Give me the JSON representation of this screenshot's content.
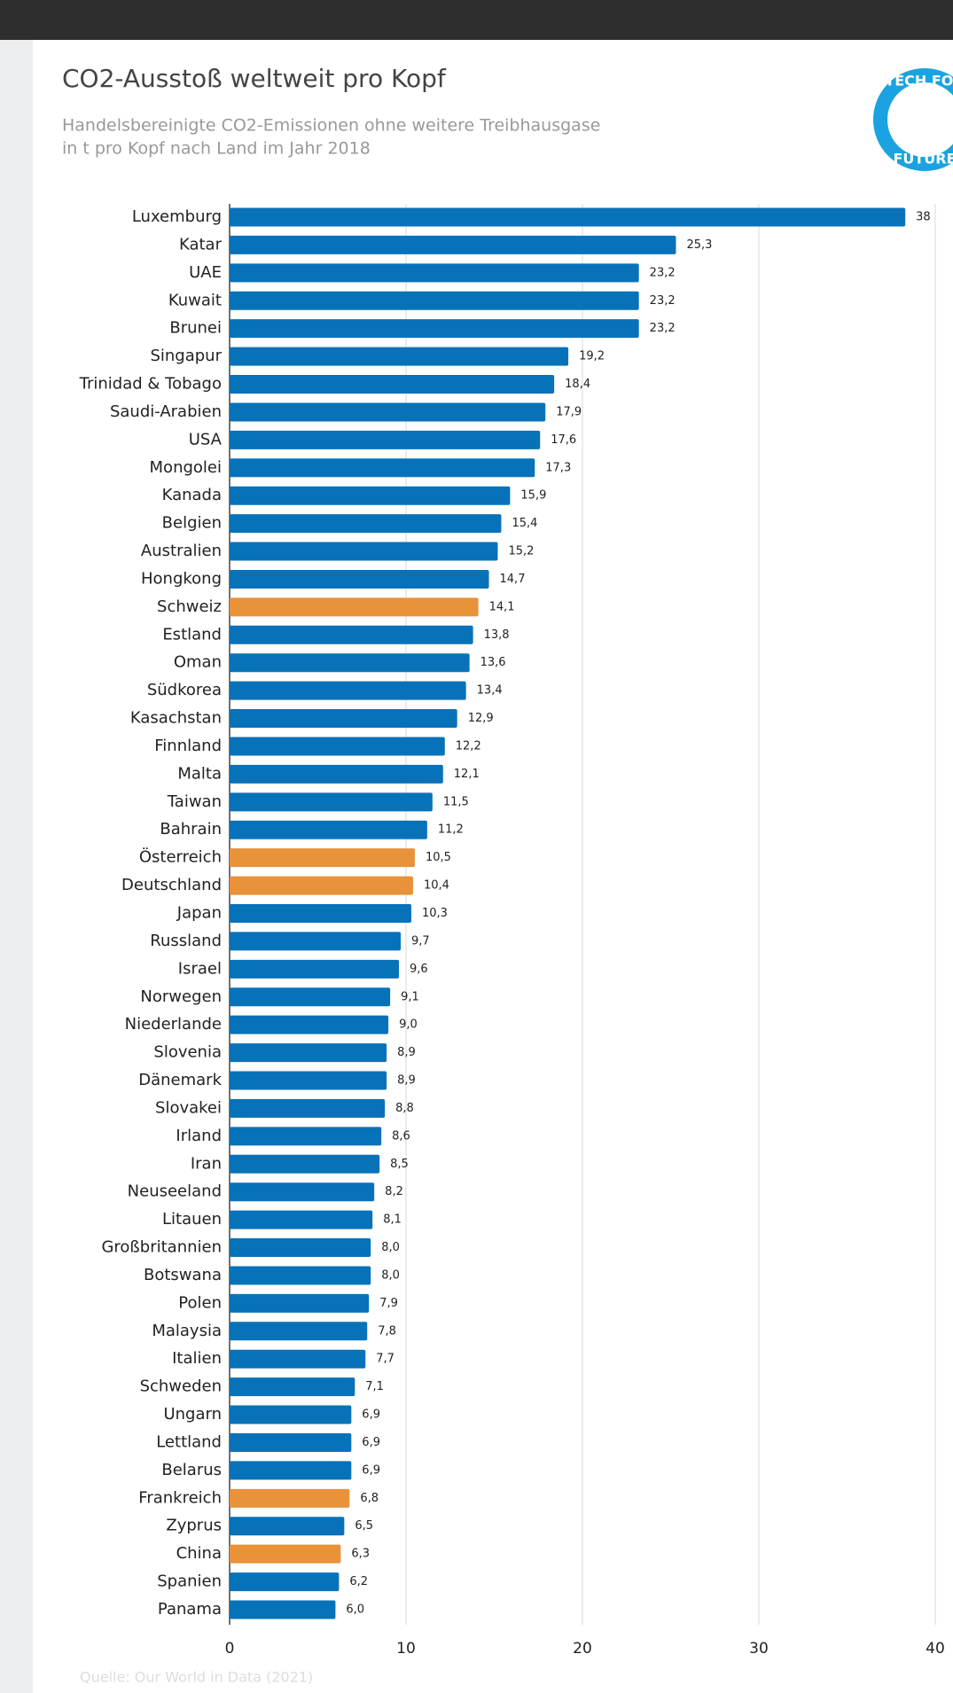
{
  "chart_data": {
    "type": "bar",
    "orientation": "horizontal",
    "title": "CO2-Ausstoß weltweit pro Kopf",
    "subtitle": [
      "Handelsbereinigte CO2-Emissionen ohne weitere Treibhausgase",
      "in t pro Kopf nach Land im Jahr 2018"
    ],
    "source": "Quelle: Our World in Data (2021)",
    "logo": {
      "top": "TECH FOR",
      "bottom": "FUTURE"
    },
    "categories": [
      "Luxemburg",
      "Katar",
      "UAE",
      "Kuwait",
      "Brunei",
      "Singapur",
      "Trinidad & Tobago",
      "Saudi-Arabien",
      "USA",
      "Mongolei",
      "Kanada",
      "Belgien",
      "Australien",
      "Hongkong",
      "Schweiz",
      "Estland",
      "Oman",
      "Südkorea",
      "Kasachstan",
      "Finnland",
      "Malta",
      "Taiwan",
      "Bahrain",
      "Österreich",
      "Deutschland",
      "Japan",
      "Russland",
      "Israel",
      "Norwegen",
      "Niederlande",
      "Slovenia",
      "Dänemark",
      "Slovakei",
      "Irland",
      "Iran",
      "Neuseeland",
      "Litauen",
      "Großbritannien",
      "Botswana",
      "Polen",
      "Malaysia",
      "Italien",
      "Schweden",
      "Ungarn",
      "Lettland",
      "Belarus",
      "Frankreich",
      "Zyprus",
      "China",
      "Spanien",
      "Panama"
    ],
    "values": [
      38.3,
      25.3,
      23.2,
      23.2,
      23.2,
      19.2,
      18.4,
      17.9,
      17.6,
      17.3,
      15.9,
      15.4,
      15.2,
      14.7,
      14.1,
      13.8,
      13.6,
      13.4,
      12.9,
      12.2,
      12.1,
      11.5,
      11.2,
      10.5,
      10.4,
      10.3,
      9.7,
      9.6,
      9.1,
      9.0,
      8.9,
      8.9,
      8.8,
      8.6,
      8.5,
      8.2,
      8.1,
      8.0,
      8.0,
      7.9,
      7.8,
      7.7,
      7.1,
      6.9,
      6.9,
      6.9,
      6.8,
      6.5,
      6.3,
      6.2,
      6.0
    ],
    "value_labels": [
      "38",
      "25,3",
      "23,2",
      "23,2",
      "23,2",
      "19,2",
      "18,4",
      "17,9",
      "17,6",
      "17,3",
      "15,9",
      "15,4",
      "15,2",
      "14,7",
      "14,1",
      "13,8",
      "13,6",
      "13,4",
      "12,9",
      "12,2",
      "12,1",
      "11,5",
      "11,2",
      "10,5",
      "10,4",
      "10,3",
      "9,7",
      "9,6",
      "9,1",
      "9,0",
      "8,9",
      "8,9",
      "8,8",
      "8,6",
      "8,5",
      "8,2",
      "8,1",
      "8,0",
      "8,0",
      "7,9",
      "7,8",
      "7,7",
      "7,1",
      "6,9",
      "6,9",
      "6,9",
      "6,8",
      "6,5",
      "6,3",
      "6,2",
      "6,0"
    ],
    "colors": [
      "#0872b9",
      "#0872b9",
      "#0872b9",
      "#0872b9",
      "#0872b9",
      "#0872b9",
      "#0872b9",
      "#0872b9",
      "#0872b9",
      "#0872b9",
      "#0872b9",
      "#0872b9",
      "#0872b9",
      "#0872b9",
      "#e8923a",
      "#0872b9",
      "#0872b9",
      "#0872b9",
      "#0872b9",
      "#0872b9",
      "#0872b9",
      "#0872b9",
      "#0872b9",
      "#e8923a",
      "#e8923a",
      "#0872b9",
      "#0872b9",
      "#0872b9",
      "#0872b9",
      "#0872b9",
      "#0872b9",
      "#0872b9",
      "#0872b9",
      "#0872b9",
      "#0872b9",
      "#0872b9",
      "#0872b9",
      "#0872b9",
      "#0872b9",
      "#0872b9",
      "#0872b9",
      "#0872b9",
      "#0872b9",
      "#0872b9",
      "#0872b9",
      "#0872b9",
      "#e8923a",
      "#0872b9",
      "#e8923a",
      "#0872b9",
      "#0872b9"
    ],
    "xlim": [
      0,
      40
    ],
    "xticks": [
      0,
      10,
      20,
      30,
      40
    ],
    "grid": true
  }
}
